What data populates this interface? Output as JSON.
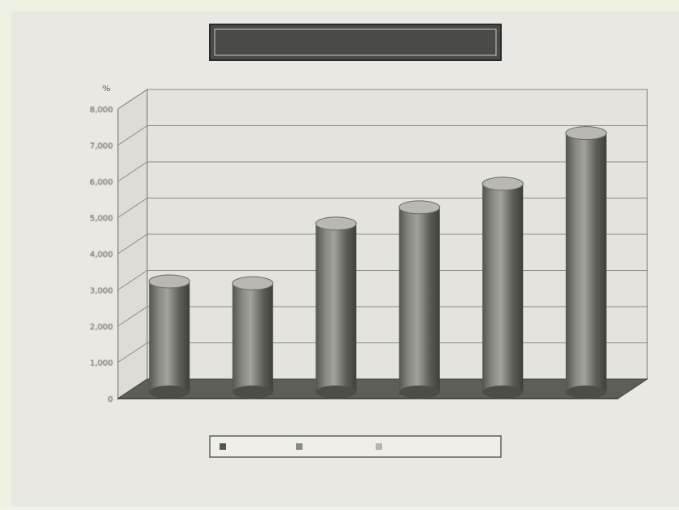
{
  "chart_data": {
    "type": "bar",
    "title": "",
    "categories": [
      "",
      "",
      "",
      "",
      "",
      ""
    ],
    "series": [
      {
        "values": [
          3100,
          3050,
          4700,
          5150,
          5800,
          7200
        ]
      }
    ],
    "value_labels": [
      "",
      "",
      "",
      "",
      "",
      ""
    ],
    "yticks": [
      "0",
      "1,000",
      "2,000",
      "3,000",
      "4,000",
      "5,000",
      "6,000",
      "7,000",
      "8,000"
    ],
    "yunit": "%",
    "ylim": [
      0,
      8000
    ],
    "legend": [
      "",
      "",
      ""
    ],
    "legend_position": "bottom",
    "grid": true,
    "style": "3d-cylinder",
    "colors": {
      "paper": "#e9e8e3",
      "ink": "#3a3a38",
      "bar": "#6b6b66",
      "title_bg": "#4a4a48"
    }
  }
}
